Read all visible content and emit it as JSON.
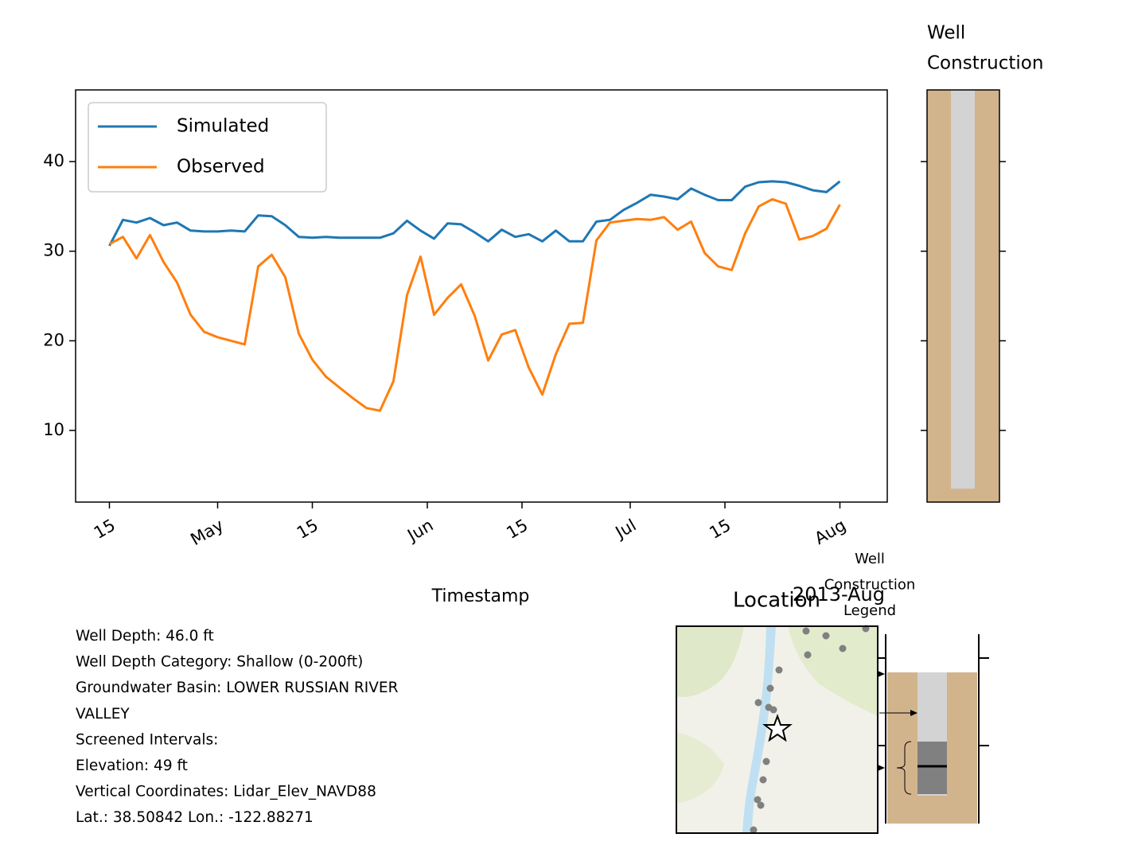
{
  "chart_data": {
    "type": "line",
    "x": [
      "2013-04-15",
      "2013-04-17",
      "2013-04-19",
      "2013-04-21",
      "2013-04-23",
      "2013-04-25",
      "2013-04-27",
      "2013-04-29",
      "2013-05-01",
      "2013-05-03",
      "2013-05-05",
      "2013-05-07",
      "2013-05-09",
      "2013-05-11",
      "2013-05-13",
      "2013-05-15",
      "2013-05-17",
      "2013-05-19",
      "2013-05-21",
      "2013-05-23",
      "2013-05-25",
      "2013-05-27",
      "2013-05-29",
      "2013-05-31",
      "2013-06-02",
      "2013-06-04",
      "2013-06-06",
      "2013-06-08",
      "2013-06-10",
      "2013-06-12",
      "2013-06-14",
      "2013-06-16",
      "2013-06-18",
      "2013-06-20",
      "2013-06-22",
      "2013-06-24",
      "2013-06-26",
      "2013-06-28",
      "2013-06-30",
      "2013-07-02",
      "2013-07-04",
      "2013-07-06",
      "2013-07-08",
      "2013-07-10",
      "2013-07-12",
      "2013-07-14",
      "2013-07-16",
      "2013-07-18",
      "2013-07-20",
      "2013-07-22",
      "2013-07-24",
      "2013-07-26",
      "2013-07-28",
      "2013-07-30",
      "2013-08-01"
    ],
    "series": [
      {
        "name": "Simulated",
        "color": "#1f77b4",
        "values": [
          30.6,
          33.5,
          33.2,
          33.7,
          32.9,
          33.2,
          32.3,
          32.2,
          32.2,
          32.3,
          32.2,
          34.0,
          33.9,
          32.9,
          31.6,
          31.5,
          31.6,
          31.5,
          31.5,
          31.5,
          31.5,
          32.0,
          33.4,
          32.3,
          31.4,
          33.1,
          33.0,
          32.1,
          31.1,
          32.4,
          31.6,
          31.9,
          31.1,
          32.3,
          31.1,
          31.1,
          33.3,
          33.5,
          34.6,
          35.4,
          36.3,
          36.1,
          35.8,
          37.0,
          36.3,
          35.7,
          35.7,
          37.2,
          37.7,
          37.8,
          37.7,
          37.3,
          36.8,
          36.6,
          37.8
        ]
      },
      {
        "name": "Observed",
        "color": "#ff7f0e",
        "values": [
          30.8,
          31.6,
          29.2,
          31.8,
          28.8,
          26.5,
          22.9,
          21.0,
          20.4,
          20.0,
          19.6,
          28.3,
          29.6,
          27.1,
          20.8,
          17.9,
          16.0,
          14.8,
          13.6,
          12.5,
          12.2,
          15.5,
          25.1,
          29.4,
          22.9,
          24.8,
          26.3,
          22.8,
          17.8,
          20.7,
          21.2,
          17.0,
          14.0,
          18.5,
          21.9,
          22.0,
          31.2,
          33.2,
          33.4,
          33.6,
          33.5,
          33.8,
          32.4,
          33.3,
          29.8,
          28.3,
          27.9,
          32.0,
          35.0,
          35.8,
          35.3,
          31.3,
          31.7,
          32.5,
          35.2
        ]
      }
    ],
    "xlim": [
      "2013-04-10",
      "2013-08-08"
    ],
    "xticks": [
      {
        "value": "2013-04-15",
        "label": "15"
      },
      {
        "value": "2013-05-01",
        "label": "May"
      },
      {
        "value": "2013-05-15",
        "label": "15"
      },
      {
        "value": "2013-06-01",
        "label": "Jun"
      },
      {
        "value": "2013-06-15",
        "label": "15"
      },
      {
        "value": "2013-07-01",
        "label": "Jul"
      },
      {
        "value": "2013-07-15",
        "label": "15"
      },
      {
        "value": "2013-08-01",
        "label": "Aug"
      }
    ],
    "x_offset_label": "2013-Aug",
    "xlabel": "Timestamp",
    "ylim": [
      2,
      48
    ],
    "yticks": [
      10,
      20,
      30,
      40
    ],
    "legend": "upper left",
    "well_panel": {
      "title": [
        "Well",
        "Construction"
      ],
      "casing_bottom": 3.5
    },
    "map_title": "Location",
    "well_legend_title": [
      "Well",
      "Construction",
      "Legend"
    ],
    "info": [
      "Well Depth: 46.0 ft",
      "Well Depth Category: Shallow (0-200ft)",
      "Groundwater Basin: LOWER RUSSIAN RIVER",
      "VALLEY",
      "Screened Intervals:",
      "Elevation: 49 ft",
      "Vertical Coordinates: Lidar_Elev_NAVD88",
      "Lat.: 38.50842 Lon.: -122.88271"
    ]
  }
}
